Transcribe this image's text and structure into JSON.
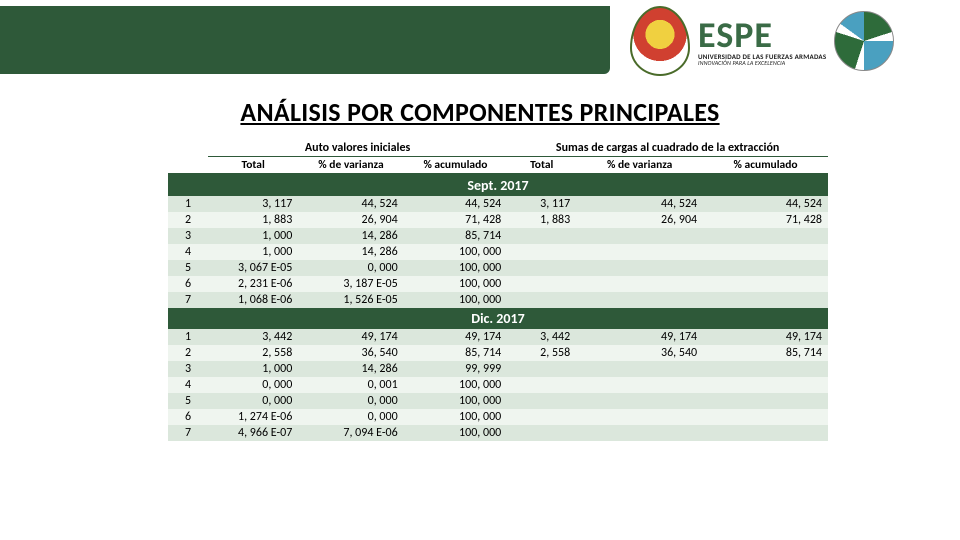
{
  "header": {
    "brand_word": "ESPE",
    "brand_sub": "UNIVERSIDAD DE LAS FUERZAS ARMADAS",
    "brand_tag": "INNOVACIÓN PARA LA EXCELENCIA"
  },
  "title": "ANÁLISIS POR COMPONENTES PRINCIPALES",
  "table": {
    "group_headers": {
      "left": "Auto valores iniciales",
      "right": "Sumas de cargas al cuadrado de la extracción"
    },
    "col_headers": [
      "Total",
      "% de varianza",
      "% acumulado",
      "Total",
      "% de varianza",
      "% acumulado"
    ],
    "section1_label": "Sept. 2017",
    "section1_rows": [
      {
        "n": "1",
        "c": [
          "3, 117",
          "44, 524",
          "44, 524",
          "3, 117",
          "44, 524",
          "44, 524"
        ]
      },
      {
        "n": "2",
        "c": [
          "1, 883",
          "26, 904",
          "71, 428",
          "1, 883",
          "26, 904",
          "71, 428"
        ]
      },
      {
        "n": "3",
        "c": [
          "1, 000",
          "14, 286",
          "85, 714",
          "",
          "",
          ""
        ]
      },
      {
        "n": "4",
        "c": [
          "1, 000",
          "14, 286",
          "100, 000",
          "",
          "",
          ""
        ]
      },
      {
        "n": "5",
        "c": [
          "3, 067 E-05",
          "0, 000",
          "100, 000",
          "",
          "",
          ""
        ]
      },
      {
        "n": "6",
        "c": [
          "2, 231 E-06",
          "3, 187 E-05",
          "100, 000",
          "",
          "",
          ""
        ]
      },
      {
        "n": "7",
        "c": [
          "1, 068 E-06",
          "1, 526 E-05",
          "100, 000",
          "",
          "",
          ""
        ]
      }
    ],
    "section2_label": "Dic. 2017",
    "section2_rows": [
      {
        "n": "1",
        "c": [
          "3, 442",
          "49, 174",
          "49, 174",
          "3, 442",
          "49, 174",
          "49, 174"
        ]
      },
      {
        "n": "2",
        "c": [
          "2, 558",
          "36, 540",
          "85, 714",
          "2, 558",
          "36, 540",
          "85, 714"
        ]
      },
      {
        "n": "3",
        "c": [
          "1, 000",
          "14, 286",
          "99, 999",
          "",
          "",
          ""
        ]
      },
      {
        "n": "4",
        "c": [
          "0, 000",
          "0, 001",
          "100, 000",
          "",
          "",
          ""
        ]
      },
      {
        "n": "5",
        "c": [
          "0, 000",
          "0, 000",
          "100, 000",
          "",
          "",
          ""
        ]
      },
      {
        "n": "6",
        "c": [
          "1, 274 E-06",
          "0, 000",
          "100, 000",
          "",
          "",
          ""
        ]
      },
      {
        "n": "7",
        "c": [
          "4, 966 E-07",
          "7, 094 E-06",
          "100, 000",
          "",
          "",
          ""
        ]
      }
    ]
  },
  "style": {
    "band_colors": [
      "#dbe7dc",
      "#eff5ef"
    ],
    "section_bg": "#2e5939",
    "section_fg": "#ffffff",
    "header_border": "#2e5939"
  }
}
